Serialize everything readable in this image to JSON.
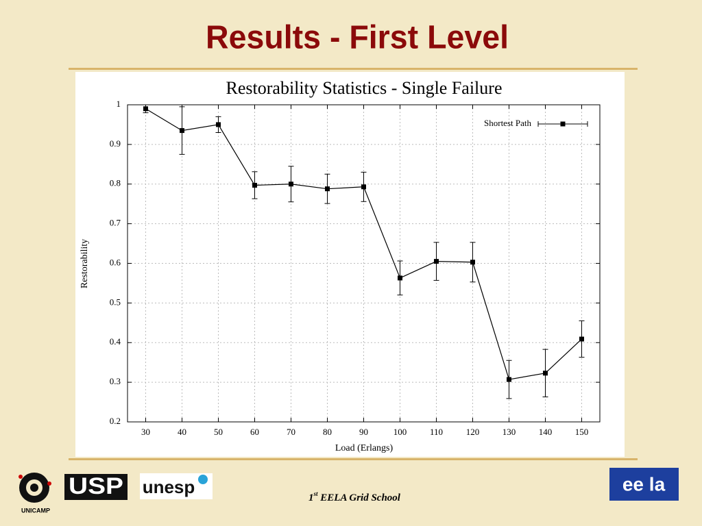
{
  "slide_title": "Results - First Level",
  "chart_data": {
    "type": "line",
    "title": "Restorability Statistics - Single Failure",
    "x_label": "Load (Erlangs)",
    "y_label": "Restorability",
    "x": [
      30,
      40,
      50,
      60,
      70,
      80,
      90,
      100,
      110,
      120,
      130,
      140,
      150
    ],
    "series": [
      {
        "name": "Shortest Path",
        "color": "#000000",
        "values": [
          0.99,
          0.935,
          0.95,
          0.797,
          0.8,
          0.788,
          0.793,
          0.563,
          0.605,
          0.603,
          0.307,
          0.323,
          0.409
        ],
        "errors": [
          0.01,
          0.06,
          0.02,
          0.034,
          0.045,
          0.037,
          0.037,
          0.043,
          0.048,
          0.05,
          0.048,
          0.06,
          0.046
        ]
      }
    ],
    "xlim": [
      25,
      155
    ],
    "xticks": [
      30,
      40,
      50,
      60,
      70,
      80,
      90,
      100,
      110,
      120,
      130,
      140,
      150
    ],
    "ylim": [
      0.2,
      1
    ],
    "yticks": [
      0.2,
      0.3,
      0.4,
      0.5,
      0.6,
      0.7,
      0.8,
      0.9,
      1
    ],
    "grid": true,
    "legend": "upper-right"
  },
  "footer": {
    "number": "1",
    "suffix": "st",
    "text": " EELA Grid School"
  },
  "logos": {
    "unicamp": "UNICAMP",
    "usp": "USP",
    "unesp": "unesp",
    "eela": "ee la"
  }
}
